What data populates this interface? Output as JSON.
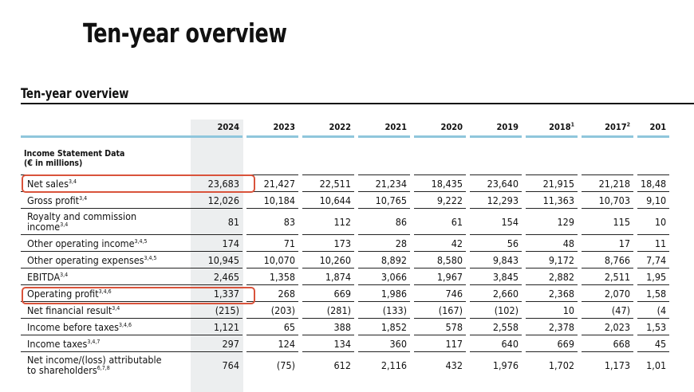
{
  "page_title": "Ten-year overview",
  "section_title": "Ten-year overview",
  "years": [
    {
      "label": "2024",
      "note": ""
    },
    {
      "label": "2023",
      "note": ""
    },
    {
      "label": "2022",
      "note": ""
    },
    {
      "label": "2021",
      "note": ""
    },
    {
      "label": "2020",
      "note": ""
    },
    {
      "label": "2019",
      "note": ""
    },
    {
      "label": "2018",
      "note": "1"
    },
    {
      "label": "2017",
      "note": "2"
    },
    {
      "label": "201",
      "note": ""
    }
  ],
  "group": {
    "title": "Income Statement Data",
    "subtitle": "(€ in millions)"
  },
  "rows": [
    {
      "label": "Net sales",
      "sup": "3,4",
      "values": [
        "23,683",
        "21,427",
        "22,511",
        "21,234",
        "18,435",
        "23,640",
        "21,915",
        "21,218",
        "18,48"
      ],
      "highlighted": true
    },
    {
      "label": "Gross profit",
      "sup": "3,4",
      "values": [
        "12,026",
        "10,184",
        "10,644",
        "10,765",
        "9,222",
        "12,293",
        "11,363",
        "10,703",
        "9,10"
      ]
    },
    {
      "label": "Royalty and commission",
      "label2": "income",
      "sup": "3,4",
      "values": [
        "81",
        "83",
        "112",
        "86",
        "61",
        "154",
        "129",
        "115",
        "10"
      ]
    },
    {
      "label": "Other operating income",
      "sup": "3,4,5",
      "values": [
        "174",
        "71",
        "173",
        "28",
        "42",
        "56",
        "48",
        "17",
        "11"
      ]
    },
    {
      "label": "Other operating expenses",
      "sup": "3,4,5",
      "values": [
        "10,945",
        "10,070",
        "10,260",
        "8,892",
        "8,580",
        "9,843",
        "9,172",
        "8,766",
        "7,74"
      ]
    },
    {
      "label": "EBITDA",
      "sup": "3,4",
      "values": [
        "2,465",
        "1,358",
        "1,874",
        "3,066",
        "1,967",
        "3,845",
        "2,882",
        "2,511",
        "1,95"
      ]
    },
    {
      "label": "Operating profit",
      "sup": "3,4,6",
      "values": [
        "1,337",
        "268",
        "669",
        "1,986",
        "746",
        "2,660",
        "2,368",
        "2,070",
        "1,58"
      ],
      "highlighted": true
    },
    {
      "label": "Net financial result",
      "sup": "3,4",
      "values": [
        "(215)",
        "(203)",
        "(281)",
        "(133)",
        "(167)",
        "(102)",
        "10",
        "(47)",
        "(4"
      ]
    },
    {
      "label": "Income before taxes",
      "sup": "3,4,6",
      "values": [
        "1,121",
        "65",
        "388",
        "1,852",
        "578",
        "2,558",
        "2,378",
        "2,023",
        "1,53"
      ]
    },
    {
      "label": "Income taxes",
      "sup": "3,4,7",
      "values": [
        "297",
        "124",
        "134",
        "360",
        "117",
        "640",
        "669",
        "668",
        "45"
      ]
    },
    {
      "label": "Net income/(loss) attributable",
      "label2": "to shareholders",
      "sup": "6,7,8",
      "values": [
        "764",
        "(75)",
        "612",
        "2,116",
        "432",
        "1,976",
        "1,702",
        "1,173",
        "1,01"
      ]
    }
  ],
  "accent_colors": {
    "header_rule": "#8fc6dc",
    "highlight_box": "#d9533b",
    "current_year_shade": "#eceeef"
  }
}
